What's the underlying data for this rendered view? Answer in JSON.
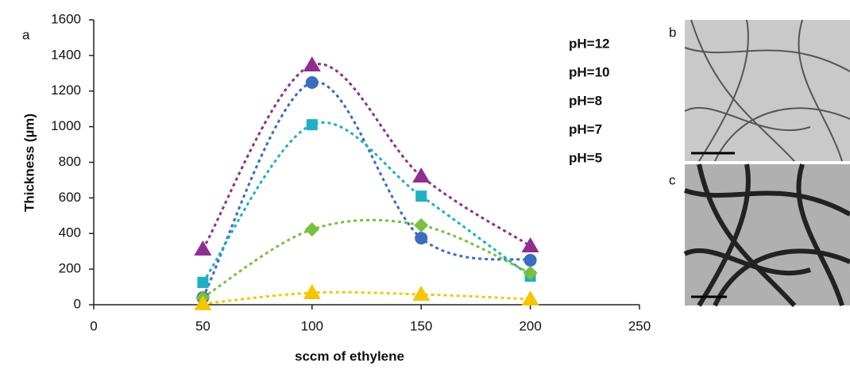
{
  "panel_labels": [
    "a",
    "b",
    "c"
  ],
  "chart_data": {
    "type": "scatter",
    "x_label": "sccm of ethylene",
    "y_label": "Thickness (µm)",
    "x": [
      50,
      100,
      150,
      200
    ],
    "xlim": [
      0,
      250
    ],
    "xticks": [
      0,
      50,
      100,
      150,
      200,
      250
    ],
    "ylim": [
      0,
      1600
    ],
    "yticks": [
      0,
      200,
      400,
      600,
      800,
      1000,
      1200,
      1400,
      1600
    ],
    "grid": false,
    "trendline": "dotted",
    "legend": "upper right",
    "series": [
      {
        "name": "pH=12",
        "color": "#8e2f8f",
        "marker": "triangle",
        "values": [
          312,
          1346,
          722,
          330
        ]
      },
      {
        "name": "pH=10",
        "color": "#3a6cbf",
        "marker": "circle",
        "values": [
          40,
          1248,
          374,
          250
        ]
      },
      {
        "name": "pH=8",
        "color": "#1fb0c4",
        "marker": "square",
        "values": [
          125,
          1011,
          610,
          160
        ]
      },
      {
        "name": "pH=7",
        "color": "#7abf3f",
        "marker": "diamond",
        "values": [
          40,
          423,
          446,
          178
        ]
      },
      {
        "name": "pH=5",
        "color": "#f6c500",
        "marker": "triangle",
        "values": [
          5,
          67,
          58,
          31
        ]
      }
    ]
  }
}
